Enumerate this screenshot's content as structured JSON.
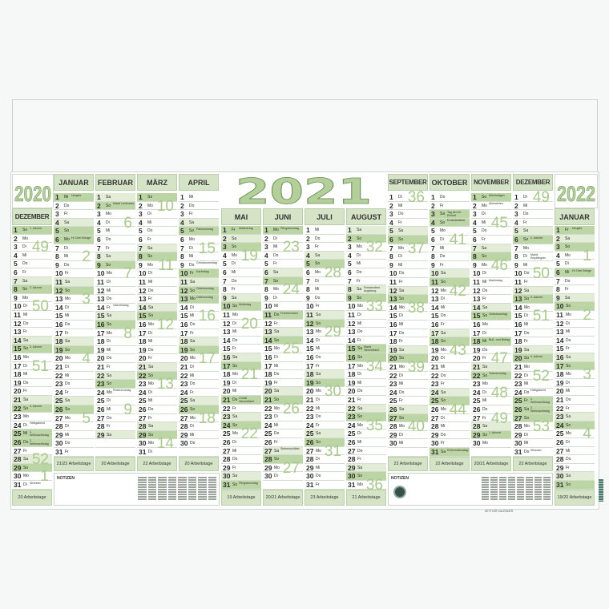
{
  "years": {
    "left": "2020",
    "center": "2021",
    "right": "2022"
  },
  "weekdays": [
    "Mo",
    "Di",
    "Mi",
    "Do",
    "Fr",
    "Sa",
    "So"
  ],
  "arbeitstage_suffix": " Arbeitstage",
  "notes_label": "NOTIZEN",
  "footer": "ZETTLER KALENDER",
  "colors": {
    "accent": "#bcd5a4",
    "saturday": "#e2ecd6",
    "header": "#d5e4c6",
    "week_number": "#a9c98d",
    "year_fill": "#b4d09a",
    "year_stroke": "#6e8d58"
  },
  "months": [
    {
      "name": "DEZEMBER",
      "first_weekday": 6,
      "days": 31,
      "arbeitstage": "20",
      "weeks": {
        "2": "49",
        "9": "50",
        "16": "51",
        "23": "52",
        "30": "1"
      },
      "holidays": [
        {
          "day": 1,
          "text": "1. Advent"
        },
        {
          "day": 8,
          "text": "2. Advent"
        },
        {
          "day": 15,
          "text": "3. Advent"
        },
        {
          "day": 22,
          "text": "4. Advent"
        },
        {
          "day": 24,
          "text": "Heiligabend"
        },
        {
          "day": 25,
          "text": "1. Weihnachtstag",
          "legal": true
        },
        {
          "day": 26,
          "text": "2. Weihnachtstag",
          "legal": true
        },
        {
          "day": 31,
          "text": "Silvester"
        }
      ]
    },
    {
      "name": "JANUAR",
      "first_weekday": 2,
      "days": 31,
      "arbeitstage": "21/22",
      "weeks": {
        "6": "2",
        "13": "3",
        "20": "4",
        "27": "5"
      },
      "holidays": [
        {
          "day": 1,
          "text": "Neujahr",
          "legal": true
        },
        {
          "day": 6,
          "text": "Hl. Drei Könige",
          "legal": true
        }
      ]
    },
    {
      "name": "FEBRUAR",
      "first_weekday": 5,
      "days": 29,
      "arbeitstage": "20",
      "weeks": {
        "3": "6",
        "10": "7",
        "17": "8",
        "24": "9"
      },
      "holidays": [
        {
          "day": 2,
          "text": "Mariä Lichtmess"
        },
        {
          "day": 14,
          "text": "Valentinstag"
        },
        {
          "day": 24,
          "text": "Rosenmontag"
        }
      ]
    },
    {
      "name": "MÄRZ",
      "first_weekday": 6,
      "days": 31,
      "arbeitstage": "22",
      "weeks": {
        "2": "10",
        "9": "11",
        "16": "12",
        "23": "13",
        "30": "14"
      },
      "holidays": []
    },
    {
      "name": "APRIL",
      "first_weekday": 2,
      "days": 30,
      "arbeitstage": "20",
      "weeks": {
        "6": "15",
        "13": "16",
        "20": "17",
        "27": "18"
      },
      "holidays": [
        {
          "day": 5,
          "text": "Palmsonntag"
        },
        {
          "day": 9,
          "text": "Gründonnerstag"
        },
        {
          "day": 10,
          "text": "Karfreitag",
          "legal": true
        },
        {
          "day": 12,
          "text": "Ostersonntag"
        },
        {
          "day": 13,
          "text": "Ostermontag",
          "legal": true
        }
      ]
    },
    {
      "name": "MAI",
      "first_weekday": 4,
      "days": 31,
      "arbeitstage": "19",
      "weeks": {
        "4": "19",
        "11": "20",
        "18": "21",
        "25": "22"
      },
      "holidays": [
        {
          "day": 1,
          "text": "Maifeiertag",
          "legal": true
        },
        {
          "day": 10,
          "text": "Muttertag"
        },
        {
          "day": 21,
          "text": "Christi Himmelfahrt",
          "legal": true
        },
        {
          "day": 31,
          "text": "Pfingstsonntag"
        }
      ]
    },
    {
      "name": "JUNI",
      "first_weekday": 0,
      "days": 30,
      "arbeitstage": "20/21",
      "weeks": {
        "1": "23",
        "8": "24",
        "15": "25",
        "22": "26",
        "29": "27"
      },
      "holidays": [
        {
          "day": 1,
          "text": "Pfingstmontag",
          "legal": true
        },
        {
          "day": 11,
          "text": "Fronleichnam",
          "legal": true
        },
        {
          "day": 27,
          "text": "Siebenschläfer"
        }
      ]
    },
    {
      "name": "JULI",
      "first_weekday": 2,
      "days": 31,
      "arbeitstage": "23",
      "weeks": {
        "6": "28",
        "13": "29",
        "20": "30",
        "27": "31"
      },
      "holidays": []
    },
    {
      "name": "AUGUST",
      "first_weekday": 5,
      "days": 31,
      "arbeitstage": "21",
      "weeks": {
        "3": "32",
        "10": "33",
        "17": "34",
        "24": "35",
        "31": "36"
      },
      "holidays": [
        {
          "day": 8,
          "text": "Friedensfest Augsburg"
        },
        {
          "day": 15,
          "text": "Mariä Himmelfahrt",
          "legal": true
        }
      ]
    },
    {
      "name": "SEPTEMBER",
      "first_weekday": 1,
      "days": 30,
      "arbeitstage": "22",
      "weeks": {
        "1": "36",
        "7": "37",
        "14": "38",
        "21": "39",
        "28": "40"
      },
      "holidays": []
    },
    {
      "name": "OKTOBER",
      "first_weekday": 3,
      "days": 31,
      "arbeitstage": "22",
      "weeks": {
        "5": "41",
        "12": "42",
        "19": "43",
        "26": "44"
      },
      "holidays": [
        {
          "day": 3,
          "text": "Tag der Dt. Einheit",
          "legal": true
        },
        {
          "day": 4,
          "text": "Erntedankfest"
        },
        {
          "day": 31,
          "text": "Reformationstag",
          "legal": true
        }
      ]
    },
    {
      "name": "NOVEMBER",
      "first_weekday": 6,
      "days": 30,
      "arbeitstage": "20/21",
      "weeks": {
        "2": "45",
        "9": "46",
        "16": "47",
        "23": "48",
        "30": "49"
      },
      "holidays": [
        {
          "day": 1,
          "text": "Allerheiligen",
          "legal": true
        },
        {
          "day": 2,
          "text": "Allerseelen"
        },
        {
          "day": 11,
          "text": "Martinstag"
        },
        {
          "day": 15,
          "text": "Volkstrauertag"
        },
        {
          "day": 18,
          "text": "Buß- und Bettag",
          "legal": true
        },
        {
          "day": 22,
          "text": "Totensonntag"
        },
        {
          "day": 29,
          "text": "1. Advent"
        }
      ]
    },
    {
      "name": "DEZEMBER",
      "first_weekday": 1,
      "days": 31,
      "arbeitstage": "22",
      "weeks": {
        "1": "49",
        "7": "50",
        "14": "51",
        "21": "52",
        "28": "53"
      },
      "holidays": [
        {
          "day": 6,
          "text": "2. Advent"
        },
        {
          "day": 8,
          "text": "Mariä Empfängnis"
        },
        {
          "day": 13,
          "text": "3. Advent"
        },
        {
          "day": 20,
          "text": "4. Advent"
        },
        {
          "day": 24,
          "text": "Heiligabend"
        },
        {
          "day": 25,
          "text": "1. Weihnachtstag",
          "legal": true
        },
        {
          "day": 26,
          "text": "2. Weihnachtstag",
          "legal": true
        },
        {
          "day": 31,
          "text": "Silvester"
        }
      ]
    },
    {
      "name": "JANUAR",
      "first_weekday": 4,
      "days": 31,
      "arbeitstage": "19/20",
      "weeks": {
        "4": "1",
        "11": "2",
        "18": "3",
        "25": "4"
      },
      "holidays": [
        {
          "day": 1,
          "text": "Neujahr",
          "legal": true
        },
        {
          "day": 6,
          "text": "Hl. Drei Könige",
          "legal": true
        }
      ]
    }
  ]
}
